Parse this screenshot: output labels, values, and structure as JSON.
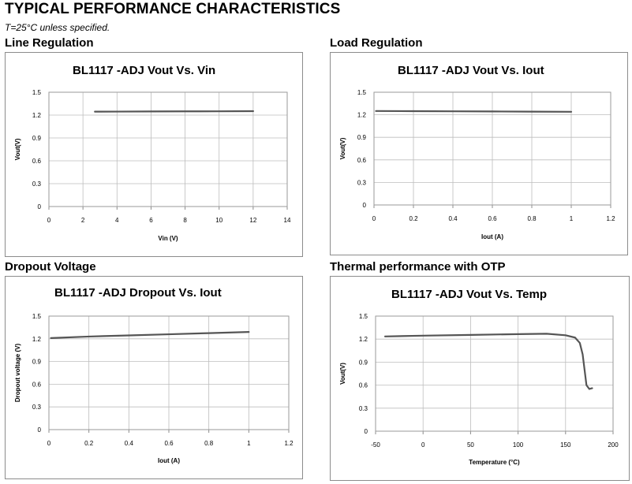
{
  "page": {
    "title": "TYPICAL PERFORMANCE CHARACTERISTICS",
    "subtitle": "T=25°C unless specified."
  },
  "sections": [
    {
      "title": "Line Regulation"
    },
    {
      "title": "Load Regulation"
    },
    {
      "title": "Dropout Voltage"
    },
    {
      "title": "Thermal performance with OTP"
    }
  ],
  "chart_data": [
    {
      "type": "line",
      "title": "BL1117  -ADJ Vout Vs. Vin",
      "xlabel": "Vin (V)",
      "ylabel": "Vout(V)",
      "xlim": [
        0,
        14
      ],
      "ylim": [
        0,
        1.5
      ],
      "x_ticks": [
        0,
        2,
        4,
        6,
        8,
        10,
        12,
        14
      ],
      "x_tick_labels": [
        "0",
        "2",
        "4",
        "6",
        "8",
        "10",
        "12",
        "14"
      ],
      "y_ticks": [
        0,
        0.3,
        0.6,
        0.9,
        1.2,
        1.5
      ],
      "y_tick_labels": [
        "0",
        "0.3",
        "0.6",
        "0.9",
        "1.2",
        "1.5"
      ],
      "grid": true,
      "color": "#555555",
      "series": [
        {
          "x": [
            2.7,
            4,
            6,
            8,
            10,
            12
          ],
          "y": [
            1.245,
            1.246,
            1.248,
            1.249,
            1.25,
            1.252
          ]
        }
      ]
    },
    {
      "type": "line",
      "title": "BL1117  -ADJ Vout Vs. Iout",
      "xlabel": "Iout (A)",
      "ylabel": "Vout(V)",
      "xlim": [
        0,
        1.2
      ],
      "ylim": [
        0,
        1.5
      ],
      "x_ticks": [
        0,
        0.2,
        0.4,
        0.6,
        0.8,
        1,
        1.2
      ],
      "x_tick_labels": [
        "0",
        "0.2",
        "0.4",
        "0.6",
        "0.8",
        "1",
        "1.2"
      ],
      "y_ticks": [
        0,
        0.3,
        0.6,
        0.9,
        1.2,
        1.5
      ],
      "y_tick_labels": [
        "0",
        "0.3",
        "0.6",
        "0.9",
        "1.2",
        "1.5"
      ],
      "grid": true,
      "color": "#555555",
      "series": [
        {
          "x": [
            0.01,
            0.2,
            0.4,
            0.6,
            0.8,
            1.0
          ],
          "y": [
            1.25,
            1.248,
            1.246,
            1.244,
            1.242,
            1.24
          ]
        }
      ]
    },
    {
      "type": "line",
      "title": "BL1117   -ADJ Dropout Vs. Iout",
      "xlabel": "Iout (A)",
      "ylabel": "Dropout voltage (V)",
      "xlim": [
        0,
        1.2
      ],
      "ylim": [
        0,
        1.5
      ],
      "x_ticks": [
        0,
        0.2,
        0.4,
        0.6,
        0.8,
        1,
        1.2
      ],
      "x_tick_labels": [
        "0",
        "0.2",
        "0.4",
        "0.6",
        "0.8",
        "1",
        "1.2"
      ],
      "y_ticks": [
        0,
        0.3,
        0.6,
        0.9,
        1.2,
        1.5
      ],
      "y_tick_labels": [
        "0",
        "0.3",
        "0.6",
        "0.9",
        "1.2",
        "1.5"
      ],
      "grid": true,
      "color": "#555555",
      "series": [
        {
          "x": [
            0.01,
            0.2,
            0.4,
            0.6,
            0.8,
            1.0
          ],
          "y": [
            1.21,
            1.23,
            1.245,
            1.26,
            1.275,
            1.29
          ]
        }
      ]
    },
    {
      "type": "line",
      "title": "BL1117  -ADJ Vout Vs. Temp",
      "xlabel": "Temperature (°C)",
      "ylabel": "Vout(V)",
      "xlim": [
        -50,
        200
      ],
      "ylim": [
        0,
        1.5
      ],
      "x_ticks": [
        -50,
        0,
        50,
        100,
        150,
        200
      ],
      "x_tick_labels": [
        "-50",
        "0",
        "50",
        "100",
        "150",
        "200"
      ],
      "y_ticks": [
        0,
        0.3,
        0.6,
        0.9,
        1.2,
        1.5
      ],
      "y_tick_labels": [
        "0",
        "0.3",
        "0.6",
        "0.9",
        "1.2",
        "1.5"
      ],
      "grid": true,
      "color": "#555555",
      "series": [
        {
          "x": [
            -40,
            0,
            50,
            100,
            130,
            150,
            160,
            165,
            168,
            170,
            172,
            175,
            178
          ],
          "y": [
            1.235,
            1.245,
            1.255,
            1.265,
            1.27,
            1.25,
            1.22,
            1.15,
            1.0,
            0.8,
            0.6,
            0.55,
            0.56
          ]
        }
      ]
    }
  ]
}
